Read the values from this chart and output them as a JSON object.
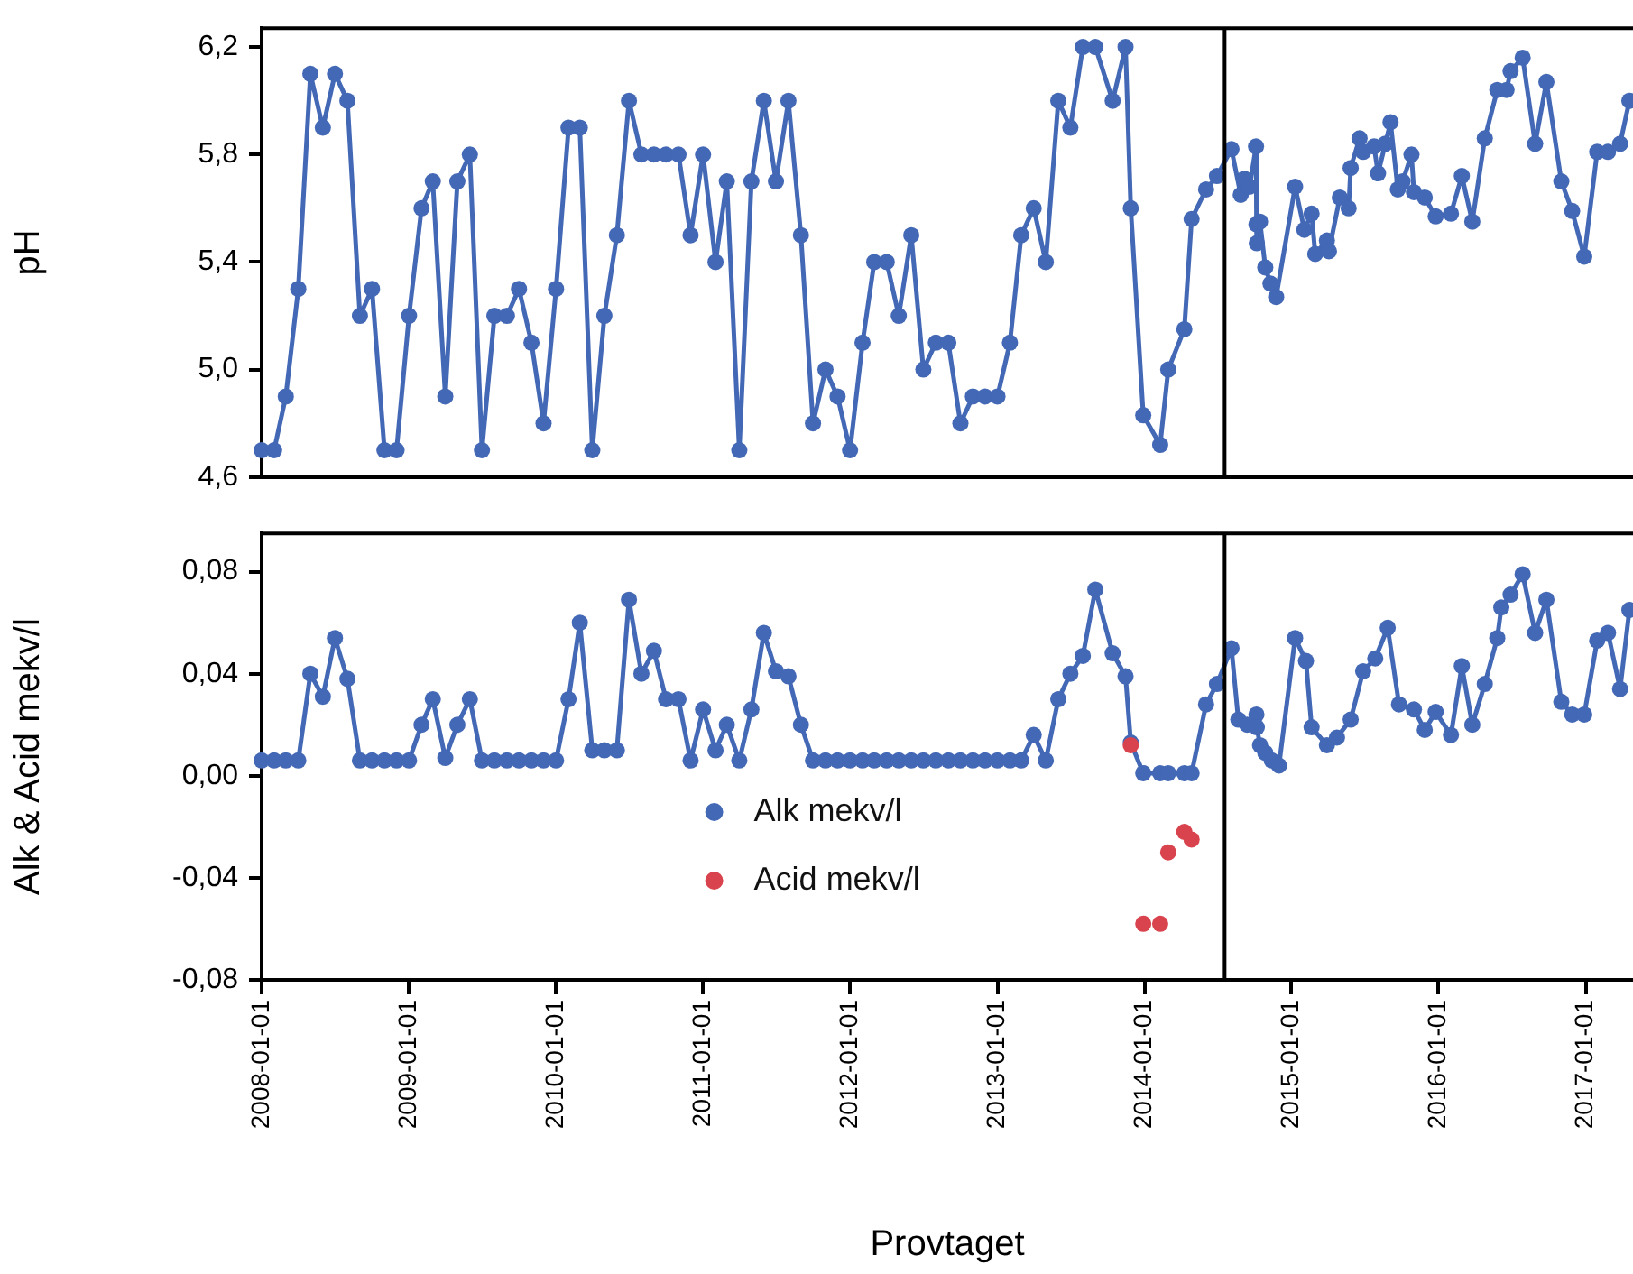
{
  "chart_data": [
    {
      "type": "line",
      "ylabel": "pH",
      "xlim": [
        "2008-01-01",
        "2017-04-28"
      ],
      "ylim": [
        4.6,
        6.27
      ],
      "tick_labels": "y",
      "marker": "circle",
      "yticks": [
        {
          "value": 4.6,
          "label": "4,6"
        },
        {
          "value": 5.0,
          "label": "5,0"
        },
        {
          "value": 5.4,
          "label": "5,4"
        },
        {
          "value": 5.8,
          "label": "5,8"
        },
        {
          "value": 6.2,
          "label": "6,2"
        }
      ],
      "ref_lines": [
        {
          "axis": "x",
          "value": "2014-07-19",
          "color": "#000000"
        }
      ],
      "series": [
        {
          "color": "#4368b5",
          "x": [
            "2008-01-01",
            "2008-02-01",
            "2008-03-01",
            "2008-04-01",
            "2008-05-01",
            "2008-06-01",
            "2008-07-01",
            "2008-08-01",
            "2008-09-01",
            "2008-10-01",
            "2008-11-01",
            "2008-12-01",
            "2009-01-01",
            "2009-02-01",
            "2009-03-01",
            "2009-04-01",
            "2009-05-01",
            "2009-06-01",
            "2009-07-01",
            "2009-08-01",
            "2009-09-01",
            "2009-10-01",
            "2009-11-01",
            "2009-12-01",
            "2010-01-01",
            "2010-02-01",
            "2010-03-01",
            "2010-04-01",
            "2010-05-01",
            "2010-06-01",
            "2010-07-01",
            "2010-08-01",
            "2010-09-01",
            "2010-10-01",
            "2010-11-01",
            "2010-12-01",
            "2011-01-01",
            "2011-02-01",
            "2011-03-01",
            "2011-04-01",
            "2011-05-01",
            "2011-06-01",
            "2011-07-01",
            "2011-08-01",
            "2011-09-01",
            "2011-10-01",
            "2011-11-01",
            "2011-12-01",
            "2012-01-01",
            "2012-02-01",
            "2012-03-01",
            "2012-04-01",
            "2012-05-01",
            "2012-06-01",
            "2012-07-01",
            "2012-08-01",
            "2012-09-01",
            "2012-10-01",
            "2012-11-01",
            "2012-12-01",
            "2013-01-01",
            "2013-02-01",
            "2013-03-01",
            "2013-04-01",
            "2013-05-01",
            "2013-06-01",
            "2013-07-01",
            "2013-08-01",
            "2013-09-01",
            "2013-10-14",
            "2013-11-15",
            "2013-11-28",
            "2013-12-29",
            "2014-02-09",
            "2014-03-01",
            "2014-04-10",
            "2014-04-28",
            "2014-06-03",
            "2014-06-30",
            "2014-08-05",
            "2014-08-28",
            "2014-09-06",
            "2014-09-19",
            "2014-10-05",
            "2014-10-06",
            "2014-10-07",
            "2014-10-15",
            "2014-10-28",
            "2014-11-10",
            "2014-11-24",
            "2015-01-10",
            "2015-02-02",
            "2015-02-20",
            "2015-03-01",
            "2015-03-30",
            "2015-04-04",
            "2015-05-01",
            "2015-05-23",
            "2015-05-28",
            "2015-06-19",
            "2015-06-28",
            "2015-07-25",
            "2015-08-04",
            "2015-08-22",
            "2015-09-04",
            "2015-09-22",
            "2015-10-04",
            "2015-10-26",
            "2015-11-01",
            "2015-11-28",
            "2015-12-25",
            "2016-02-01",
            "2016-02-28",
            "2016-03-25",
            "2016-04-25",
            "2016-05-26",
            "2016-06-18",
            "2016-06-28",
            "2016-07-28",
            "2016-08-28",
            "2016-09-25",
            "2016-11-01",
            "2016-11-28",
            "2016-12-28",
            "2017-01-29",
            "2017-02-25",
            "2017-03-27",
            "2017-04-19"
          ],
          "values": [
            4.7,
            4.7,
            4.9,
            5.3,
            6.1,
            5.9,
            6.1,
            6.0,
            5.2,
            5.3,
            4.7,
            4.7,
            5.2,
            5.6,
            5.7,
            4.9,
            5.7,
            5.8,
            4.7,
            5.2,
            5.2,
            5.3,
            5.1,
            4.8,
            5.3,
            5.9,
            5.9,
            4.7,
            5.2,
            5.5,
            6.0,
            5.8,
            5.8,
            5.8,
            5.8,
            5.5,
            5.8,
            5.4,
            5.7,
            4.7,
            5.7,
            6.0,
            5.7,
            6.0,
            5.5,
            4.8,
            5.0,
            4.9,
            4.7,
            5.1,
            5.4,
            5.4,
            5.2,
            5.5,
            5.0,
            5.1,
            5.1,
            4.8,
            4.9,
            4.9,
            4.9,
            5.1,
            5.5,
            5.6,
            5.4,
            6.0,
            5.9,
            6.2,
            6.2,
            6.0,
            6.2,
            5.6,
            4.83,
            4.72,
            5.0,
            5.15,
            5.56,
            5.67,
            5.72,
            5.82,
            5.65,
            5.71,
            5.68,
            5.83,
            5.54,
            5.47,
            5.55,
            5.38,
            5.32,
            5.27,
            5.68,
            5.52,
            5.58,
            5.43,
            5.48,
            5.44,
            5.64,
            5.6,
            5.75,
            5.86,
            5.81,
            5.83,
            5.73,
            5.84,
            5.92,
            5.67,
            5.7,
            5.8,
            5.66,
            5.64,
            5.57,
            5.58,
            5.72,
            5.55,
            5.86,
            6.04,
            6.04,
            6.11,
            6.16,
            5.84,
            6.07,
            5.7,
            5.59,
            5.42,
            5.81,
            5.81,
            5.84,
            6.0
          ]
        }
      ]
    },
    {
      "type": "line",
      "ylabel": "Alk & Acid mekv/l",
      "xlabel": "Provtaget",
      "xlim": [
        "2008-01-01",
        "2017-04-28"
      ],
      "ylim": [
        -0.08,
        0.095
      ],
      "marker": "circle",
      "legend": "bottom",
      "xticks": [
        "2008-01-01",
        "2009-01-01",
        "2010-01-01",
        "2011-01-01",
        "2012-01-01",
        "2013-01-01",
        "2014-01-01",
        "2015-01-01",
        "2016-01-01",
        "2017-01-01"
      ],
      "yticks": [
        {
          "value": -0.08,
          "label": "-0,08"
        },
        {
          "value": -0.04,
          "label": "-0,04"
        },
        {
          "value": 0,
          "label": "0,00"
        },
        {
          "value": 0.04,
          "label": "0,04"
        },
        {
          "value": 0.08,
          "label": "0,08"
        }
      ],
      "ref_lines": [
        {
          "axis": "x",
          "value": "2014-07-19",
          "color": "#000000"
        }
      ],
      "series": [
        {
          "name": "Alk mekv/l",
          "type": "line",
          "color": "#4368b5",
          "x": [
            "2008-01-01",
            "2008-02-01",
            "2008-03-01",
            "2008-04-01",
            "2008-05-01",
            "2008-06-01",
            "2008-07-01",
            "2008-08-01",
            "2008-09-01",
            "2008-10-01",
            "2008-11-01",
            "2008-12-01",
            "2009-01-01",
            "2009-02-01",
            "2009-03-01",
            "2009-04-01",
            "2009-05-01",
            "2009-06-01",
            "2009-07-01",
            "2009-08-01",
            "2009-09-01",
            "2009-10-01",
            "2009-11-01",
            "2009-12-01",
            "2010-01-01",
            "2010-02-01",
            "2010-03-01",
            "2010-04-01",
            "2010-05-01",
            "2010-06-01",
            "2010-07-01",
            "2010-08-01",
            "2010-09-01",
            "2010-10-01",
            "2010-11-01",
            "2010-12-01",
            "2011-01-01",
            "2011-02-01",
            "2011-03-01",
            "2011-04-01",
            "2011-05-01",
            "2011-06-01",
            "2011-07-01",
            "2011-08-01",
            "2011-09-01",
            "2011-10-01",
            "2011-11-01",
            "2011-12-01",
            "2012-01-01",
            "2012-02-01",
            "2012-03-01",
            "2012-04-01",
            "2012-05-01",
            "2012-06-01",
            "2012-07-01",
            "2012-08-01",
            "2012-09-01",
            "2012-10-01",
            "2012-11-01",
            "2012-12-01",
            "2013-01-01",
            "2013-02-01",
            "2013-03-01",
            "2013-04-01",
            "2013-05-01",
            "2013-06-01",
            "2013-07-01",
            "2013-08-01",
            "2013-09-01",
            "2013-10-14",
            "2013-11-15",
            "2013-11-28",
            "2013-12-29",
            "2014-02-09",
            "2014-03-01",
            "2014-04-10",
            "2014-04-28",
            "2014-06-03",
            "2014-06-30",
            "2014-08-05",
            "2014-08-22",
            "2014-09-13",
            "2014-10-06",
            "2014-10-07",
            "2014-10-15",
            "2014-10-28",
            "2014-11-13",
            "2014-12-01",
            "2015-01-10",
            "2015-02-06",
            "2015-02-20",
            "2015-03-30",
            "2015-04-24",
            "2015-05-28",
            "2015-06-28",
            "2015-07-28",
            "2015-08-28",
            "2015-09-25",
            "2015-11-01",
            "2015-11-28",
            "2015-12-25",
            "2016-02-01",
            "2016-02-28",
            "2016-03-25",
            "2016-04-25",
            "2016-05-26",
            "2016-06-05",
            "2016-06-28",
            "2016-07-28",
            "2016-08-28",
            "2016-09-25",
            "2016-11-01",
            "2016-11-28",
            "2016-12-28",
            "2017-01-29",
            "2017-02-25",
            "2017-03-27",
            "2017-04-19"
          ],
          "values": [
            0.006,
            0.006,
            0.006,
            0.006,
            0.04,
            0.031,
            0.054,
            0.038,
            0.006,
            0.006,
            0.006,
            0.006,
            0.006,
            0.02,
            0.03,
            0.007,
            0.02,
            0.03,
            0.006,
            0.006,
            0.006,
            0.006,
            0.006,
            0.006,
            0.006,
            0.03,
            0.06,
            0.01,
            0.01,
            0.01,
            0.069,
            0.04,
            0.049,
            0.03,
            0.03,
            0.006,
            0.026,
            0.01,
            0.02,
            0.006,
            0.026,
            0.056,
            0.041,
            0.039,
            0.02,
            0.006,
            0.006,
            0.006,
            0.006,
            0.006,
            0.006,
            0.006,
            0.006,
            0.006,
            0.006,
            0.006,
            0.006,
            0.006,
            0.006,
            0.006,
            0.006,
            0.006,
            0.006,
            0.016,
            0.006,
            0.03,
            0.04,
            0.047,
            0.073,
            0.048,
            0.039,
            0.013,
            0.001,
            0.001,
            0.001,
            0.001,
            0.001,
            0.028,
            0.036,
            0.05,
            0.022,
            0.02,
            0.024,
            0.019,
            0.012,
            0.009,
            0.006,
            0.004,
            0.054,
            0.045,
            0.019,
            0.012,
            0.015,
            0.022,
            0.041,
            0.046,
            0.058,
            0.028,
            0.026,
            0.018,
            0.025,
            0.016,
            0.043,
            0.02,
            0.036,
            0.054,
            0.066,
            0.071,
            0.079,
            0.056,
            0.069,
            0.029,
            0.024,
            0.024,
            0.053,
            0.056,
            0.034,
            0.065
          ]
        },
        {
          "name": "Acid mekv/l",
          "type": "scatter",
          "color": "#d9434e",
          "x": [
            "2013-11-28",
            "2013-12-29",
            "2014-02-09",
            "2014-03-01",
            "2014-04-10",
            "2014-04-28"
          ],
          "values": [
            0.012,
            -0.058,
            -0.058,
            -0.03,
            -0.022,
            -0.025
          ]
        }
      ]
    }
  ]
}
